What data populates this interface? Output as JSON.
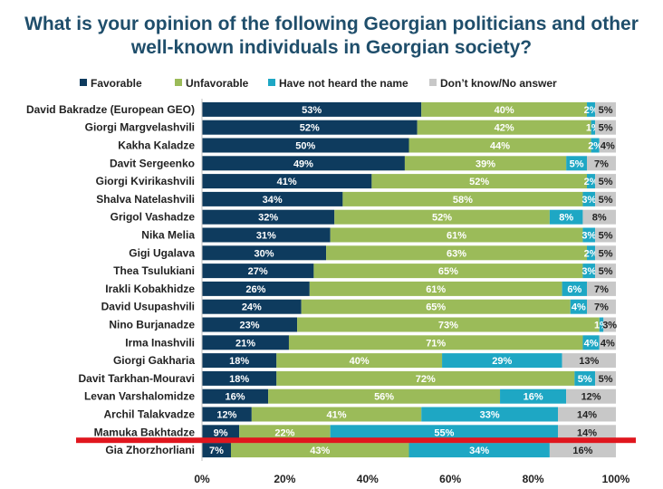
{
  "chart_data": {
    "type": "bar",
    "orientation": "horizontal",
    "stacked": true,
    "title": "What is your opinion of the following Georgian politicians and other well-known individuals in Georgian society?",
    "title_lines": [
      "What is your opinion of the following Georgian politicians and other",
      "well-known individuals in Georgian society?"
    ],
    "categories": [
      "David Bakradze (European GEO)",
      "Giorgi Margvelashvili",
      "Kakha Kaladze",
      "Davit Sergeenko",
      "Giorgi Kvirikashvili",
      "Shalva Natelashvili",
      "Grigol Vashadze",
      "Nika Melia",
      "Gigi Ugalava",
      "Thea Tsulukiani",
      "Irakli Kobakhidze",
      "David Usupashvili",
      "Nino Burjanadze",
      "Irma Inashvili",
      "Giorgi Gakharia",
      "Davit Tarkhan-Mouravi",
      "Levan Varshalomidze",
      "Archil Talakvadze",
      "Mamuka Bakhtadze",
      "Gia Zhorzhorliani"
    ],
    "series": [
      {
        "name": "Favorable",
        "color": "#0e3b5e",
        "label_color": "#ffffff",
        "values": [
          53,
          52,
          50,
          49,
          41,
          34,
          32,
          31,
          30,
          27,
          26,
          24,
          23,
          21,
          18,
          18,
          16,
          12,
          9,
          7
        ]
      },
      {
        "name": "Unfavorable",
        "color": "#9bbb59",
        "label_color": "#ffffff",
        "values": [
          40,
          42,
          44,
          39,
          52,
          58,
          52,
          61,
          63,
          65,
          61,
          65,
          73,
          71,
          40,
          72,
          56,
          41,
          22,
          43
        ]
      },
      {
        "name": "Have not heard the name",
        "color": "#1ea7c4",
        "label_color": "#ffffff",
        "values": [
          2,
          1,
          2,
          5,
          2,
          3,
          8,
          3,
          2,
          3,
          6,
          4,
          1,
          4,
          29,
          5,
          16,
          33,
          55,
          34
        ]
      },
      {
        "name": "Don’t know/No answer",
        "color": "#c8c8c8",
        "label_color": "#222222",
        "values": [
          5,
          5,
          4,
          7,
          5,
          5,
          8,
          5,
          5,
          5,
          7,
          7,
          3,
          4,
          13,
          5,
          12,
          14,
          14,
          16
        ]
      }
    ],
    "xlim": [
      0,
      100
    ],
    "x_ticks": [
      "0%",
      "20%",
      "40%",
      "60%",
      "80%",
      "100%"
    ],
    "x_tick_values": [
      0,
      20,
      40,
      60,
      80,
      100
    ],
    "value_suffix": "%",
    "legend_position": "top",
    "highlight_line_color": "#e0161e",
    "highlight_after_category": "Mamuka Bakhtadze"
  }
}
